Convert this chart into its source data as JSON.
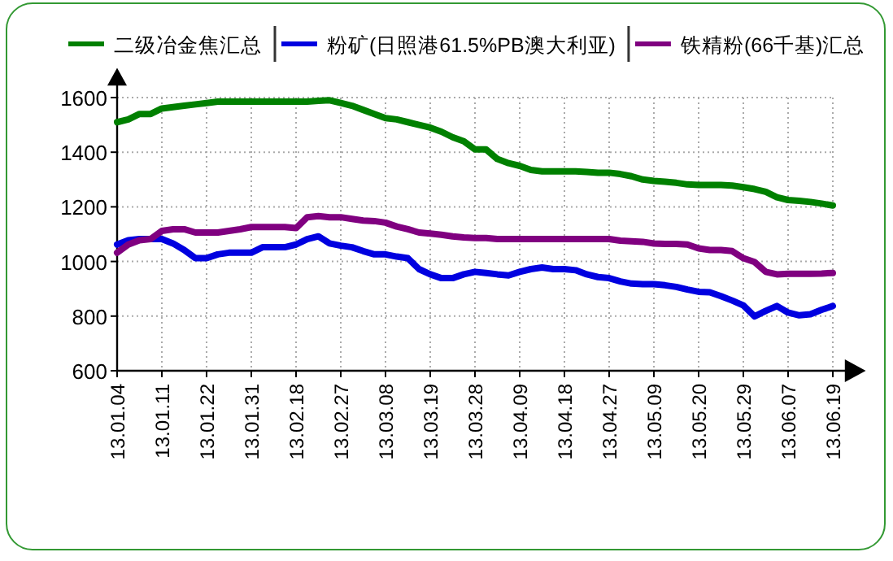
{
  "chart_data": {
    "type": "line",
    "categories": [
      "13.01.04",
      null,
      null,
      null,
      "13.01.11",
      null,
      null,
      null,
      "13.01.22",
      null,
      null,
      null,
      "13.01.31",
      null,
      null,
      null,
      "13.02.18",
      null,
      null,
      null,
      "13.02.27",
      null,
      null,
      null,
      "13.03.08",
      null,
      null,
      null,
      "13.03.19",
      null,
      null,
      null,
      "13.03.28",
      null,
      null,
      null,
      "13.04.09",
      null,
      null,
      null,
      "13.04.18",
      null,
      null,
      null,
      "13.04.27",
      null,
      null,
      null,
      "13.05.09",
      null,
      null,
      null,
      "13.05.20",
      null,
      null,
      null,
      "13.05.29",
      null,
      null,
      null,
      "13.06.07",
      null,
      null,
      null,
      "13.06.19"
    ],
    "series": [
      {
        "name": "二级冶金焦汇总",
        "color": "#008000",
        "values": [
          1510,
          1520,
          1540,
          1540,
          1560,
          1565,
          1570,
          1575,
          1580,
          1585,
          1585,
          1585,
          1585,
          1585,
          1585,
          1585,
          1585,
          1585,
          1588,
          1590,
          1580,
          1570,
          1555,
          1540,
          1525,
          1520,
          1510,
          1500,
          1490,
          1475,
          1455,
          1440,
          1410,
          1410,
          1375,
          1360,
          1350,
          1335,
          1330,
          1330,
          1330,
          1330,
          1328,
          1325,
          1325,
          1320,
          1312,
          1300,
          1295,
          1292,
          1288,
          1282,
          1280,
          1280,
          1280,
          1278,
          1272,
          1265,
          1255,
          1235,
          1225,
          1222,
          1218,
          1212,
          1205
        ]
      },
      {
        "name": "粉矿(日照港61.5%PB澳大利亚)",
        "color": "#0000e0",
        "values": [
          1062,
          1078,
          1082,
          1082,
          1082,
          1066,
          1042,
          1012,
          1012,
          1026,
          1032,
          1032,
          1032,
          1052,
          1052,
          1052,
          1062,
          1082,
          1092,
          1066,
          1058,
          1052,
          1038,
          1026,
          1026,
          1018,
          1012,
          972,
          953,
          939,
          939,
          953,
          962,
          958,
          953,
          949,
          962,
          972,
          978,
          972,
          972,
          968,
          953,
          943,
          939,
          927,
          919,
          917,
          917,
          913,
          907,
          897,
          889,
          887,
          873,
          857,
          839,
          799,
          819,
          837,
          813,
          803,
          807,
          823,
          837
        ]
      },
      {
        "name": "铁精粉(66千基)汇总",
        "color": "#800080",
        "values": [
          1032,
          1062,
          1078,
          1082,
          1112,
          1118,
          1118,
          1106,
          1106,
          1106,
          1112,
          1118,
          1126,
          1126,
          1126,
          1126,
          1122,
          1162,
          1166,
          1162,
          1162,
          1156,
          1150,
          1148,
          1142,
          1128,
          1118,
          1106,
          1102,
          1098,
          1092,
          1088,
          1086,
          1086,
          1082,
          1082,
          1082,
          1082,
          1082,
          1082,
          1082,
          1082,
          1082,
          1082,
          1082,
          1076,
          1074,
          1072,
          1066,
          1064,
          1064,
          1062,
          1048,
          1042,
          1042,
          1038,
          1012,
          998,
          962,
          953,
          955,
          955,
          955,
          956,
          958
        ]
      }
    ],
    "ylim": [
      600,
      1600
    ],
    "yticks": [
      600,
      800,
      1000,
      1200,
      1400,
      1600
    ],
    "grid": true,
    "legend": "top",
    "marker": "none",
    "line_style": "solid"
  }
}
